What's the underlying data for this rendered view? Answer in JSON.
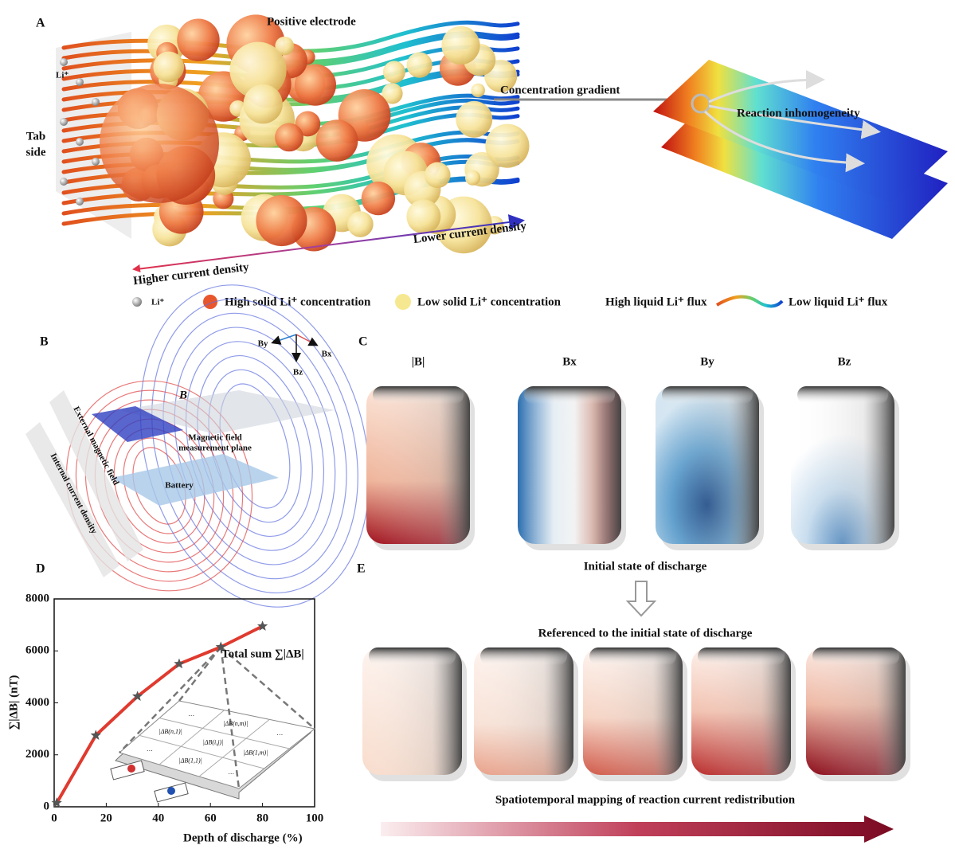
{
  "panel_a": {
    "label": "A",
    "title": "Positive electrode",
    "li_label": "Li⁺",
    "tab_side": [
      "Tab",
      "side"
    ],
    "concentration_gradient": "Concentration gradient",
    "reaction_inhomogeneity": "Reaction inhomogeneity",
    "lower_current_density": "Lower current density",
    "higher_current_density": "Higher current density",
    "legend": [
      "Li⁺",
      "High solid Li⁺ concentration",
      "Low solid Li⁺ concentration",
      "High liquid Li⁺ flux",
      "Low liquid Li⁺ flux"
    ]
  },
  "panel_b": {
    "label": "B",
    "axes": [
      "By",
      "Bx",
      "Bz"
    ],
    "field_vector": "B⃗",
    "external_field": "External magnetic field",
    "internal_current": "Internal current density",
    "measurement_plane": [
      "Magnetic field",
      "measurement plane"
    ],
    "battery": "Battery"
  },
  "panel_c": {
    "label": "C",
    "titles": [
      "|B|",
      "Bx",
      "By",
      "Bz"
    ]
  },
  "panel_d": {
    "label": "D"
  },
  "panel_e": {
    "label": "E",
    "initial": "Initial state of discharge",
    "referenced": "Referenced to the initial state of discharge",
    "caption": "Spatiotemporal mapping of reaction current redistribution"
  },
  "chart_data": {
    "type": "line",
    "x": [
      1,
      16,
      32,
      48,
      64,
      80
    ],
    "values": [
      150,
      2750,
      4250,
      5500,
      6150,
      6950
    ],
    "color": "#e03a2f",
    "marker_color": "#555555",
    "xlim": [
      0,
      100
    ],
    "ylim": [
      0,
      8000
    ],
    "xticks": [
      0,
      20,
      40,
      60,
      80,
      100
    ],
    "yticks": [
      0,
      2000,
      4000,
      6000,
      8000
    ],
    "xlabel": "Depth of discharge (%)",
    "ylabel": "∑|ΔB| (nT)",
    "annotation": "Total sum ∑|ΔB|",
    "inset_labels": [
      "|ΔB(n,m)|",
      "|ΔB(n,1)|",
      "|ΔB(i,j)|",
      "|ΔB(1,m)|",
      "|ΔB(1,1)|",
      "…"
    ]
  }
}
